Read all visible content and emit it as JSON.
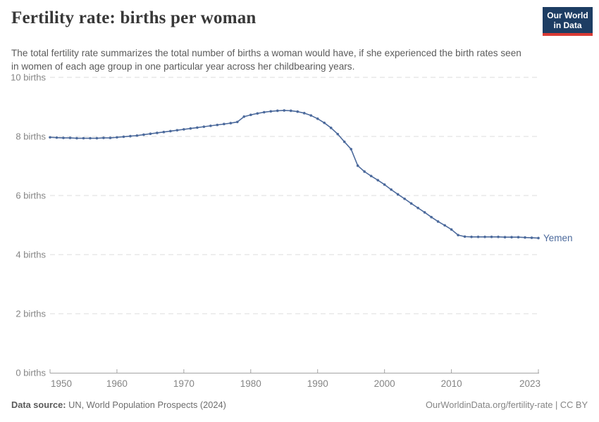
{
  "header": {
    "title": "Fertility rate: births per woman",
    "subtitle": "The total fertility rate summarizes the total number of births a woman would have, if she experienced the birth rates seen in women of each age group in one particular year across her childbearing years.",
    "logo": {
      "line1": "Our World",
      "line2": "in Data",
      "bg_color": "#1d3d63",
      "stripe_color": "#d93a34"
    }
  },
  "chart_data": {
    "type": "line",
    "title": "Fertility rate: births per woman",
    "entity_label": "Yemen",
    "x": [
      1950,
      1951,
      1952,
      1953,
      1954,
      1955,
      1956,
      1957,
      1958,
      1959,
      1960,
      1961,
      1962,
      1963,
      1964,
      1965,
      1966,
      1967,
      1968,
      1969,
      1970,
      1971,
      1972,
      1973,
      1974,
      1975,
      1976,
      1977,
      1978,
      1979,
      1980,
      1981,
      1982,
      1983,
      1984,
      1985,
      1986,
      1987,
      1988,
      1989,
      1990,
      1991,
      1992,
      1993,
      1994,
      1995,
      1996,
      1997,
      1998,
      1999,
      2000,
      2001,
      2002,
      2003,
      2004,
      2005,
      2006,
      2007,
      2008,
      2009,
      2010,
      2011,
      2012,
      2013,
      2014,
      2015,
      2016,
      2017,
      2018,
      2019,
      2020,
      2021,
      2022,
      2023
    ],
    "series": [
      {
        "name": "Yemen",
        "values": [
          7.97,
          7.96,
          7.95,
          7.95,
          7.94,
          7.94,
          7.94,
          7.94,
          7.95,
          7.95,
          7.97,
          7.99,
          8.01,
          8.03,
          8.06,
          8.09,
          8.12,
          8.15,
          8.18,
          8.21,
          8.24,
          8.27,
          8.3,
          8.33,
          8.36,
          8.39,
          8.42,
          8.45,
          8.49,
          8.67,
          8.73,
          8.78,
          8.82,
          8.85,
          8.87,
          8.88,
          8.87,
          8.84,
          8.79,
          8.71,
          8.6,
          8.46,
          8.29,
          8.08,
          7.82,
          7.57,
          7.01,
          6.81,
          6.66,
          6.52,
          6.37,
          6.2,
          6.04,
          5.89,
          5.73,
          5.58,
          5.43,
          5.27,
          5.12,
          4.99,
          4.85,
          4.66,
          4.61,
          4.6,
          4.6,
          4.6,
          4.6,
          4.6,
          4.59,
          4.59,
          4.59,
          4.58,
          4.57,
          4.56
        ]
      }
    ],
    "xlim": [
      1950,
      2023
    ],
    "ylim": [
      0,
      10
    ],
    "x_ticks": [
      1950,
      1960,
      1970,
      1980,
      1990,
      2000,
      2010,
      2023
    ],
    "y_ticks": [
      0,
      2,
      4,
      6,
      8,
      10
    ],
    "y_tick_suffix": " births",
    "grid": "horizontal-dashed",
    "legend_position": "end-of-line",
    "colors": {
      "line": "#4c6a9c",
      "grid": "#dddddd",
      "axis": "#a3a3a3",
      "tick_label": "#858585"
    }
  },
  "footer": {
    "source_label": "Data source:",
    "source_value": " UN, World Population Prospects (2024)",
    "credit": "OurWorldinData.org/fertility-rate | CC BY"
  }
}
